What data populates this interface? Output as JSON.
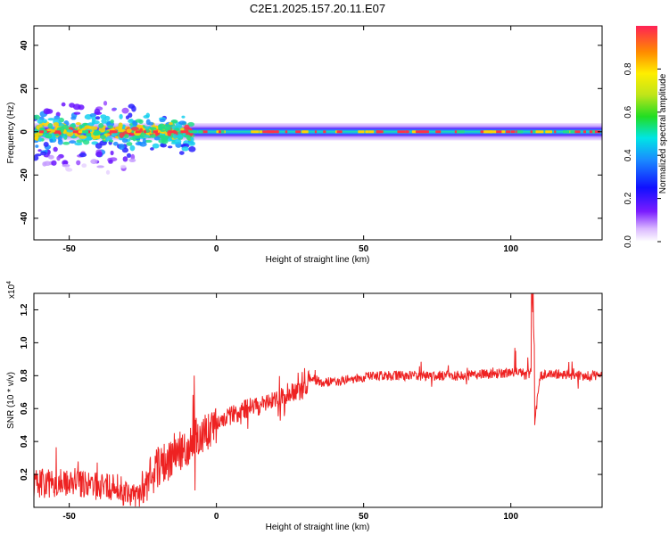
{
  "title": "C2E1.2025.157.20.11.E07",
  "colorbar": {
    "label": "Normalized spectral amplitude",
    "ticks": [
      "0.0",
      "0.2",
      "0.4",
      "0.6",
      "0.8"
    ]
  },
  "chart_data": [
    {
      "type": "heatmap",
      "xlabel": "Height of straight line (km)",
      "ylabel": "Frequency (Hz)",
      "xlim": [
        -62,
        131
      ],
      "ylim": [
        -50,
        49
      ],
      "xticks": [
        "-50",
        "0",
        "50",
        "100"
      ],
      "yticks": [
        "40",
        "20",
        "0",
        "-20",
        "-40"
      ],
      "grid": false,
      "band": {
        "center_frequency_hz": 0,
        "half_width_hz": 4,
        "scatter_region_km": [
          -62,
          -8
        ],
        "scatter_extent_hz": [
          -17,
          13
        ]
      }
    },
    {
      "type": "line",
      "xlabel": "Height of straight line (km)",
      "ylabel": "SNR (10 * v/v)",
      "scale_label": "(x10 4)",
      "scale_base": "x10",
      "scale_exp": "4",
      "xlim": [
        -62,
        131
      ],
      "ylim": [
        0,
        1.3
      ],
      "xticks": [
        "-50",
        "0",
        "50",
        "100"
      ],
      "yticks": [
        "0.2",
        "0.4",
        "0.6",
        "0.8",
        "1.0",
        "1.2"
      ],
      "line_color": "#ee2222",
      "series": [
        {
          "x": [
            -62,
            -55,
            -50,
            -45,
            -40,
            -35,
            -30,
            -27,
            -25,
            -20,
            -15,
            -10,
            -5,
            0,
            5,
            10,
            15,
            20,
            25,
            30,
            32,
            35,
            40,
            45,
            50,
            55,
            60,
            65,
            70,
            75,
            80,
            85,
            90,
            95,
            100,
            103,
            105,
            107,
            108,
            110,
            115,
            120,
            125,
            131
          ],
          "values": [
            0.15,
            0.14,
            0.16,
            0.14,
            0.13,
            0.12,
            0.09,
            0.05,
            0.14,
            0.24,
            0.3,
            0.38,
            0.45,
            0.52,
            0.56,
            0.6,
            0.62,
            0.65,
            0.69,
            0.72,
            0.8,
            0.76,
            0.76,
            0.78,
            0.79,
            0.8,
            0.8,
            0.8,
            0.8,
            0.8,
            0.8,
            0.8,
            0.81,
            0.81,
            0.82,
            0.83,
            0.8,
            0.82,
            0.5,
            0.8,
            0.81,
            0.8,
            0.8,
            0.8
          ]
        }
      ]
    }
  ]
}
